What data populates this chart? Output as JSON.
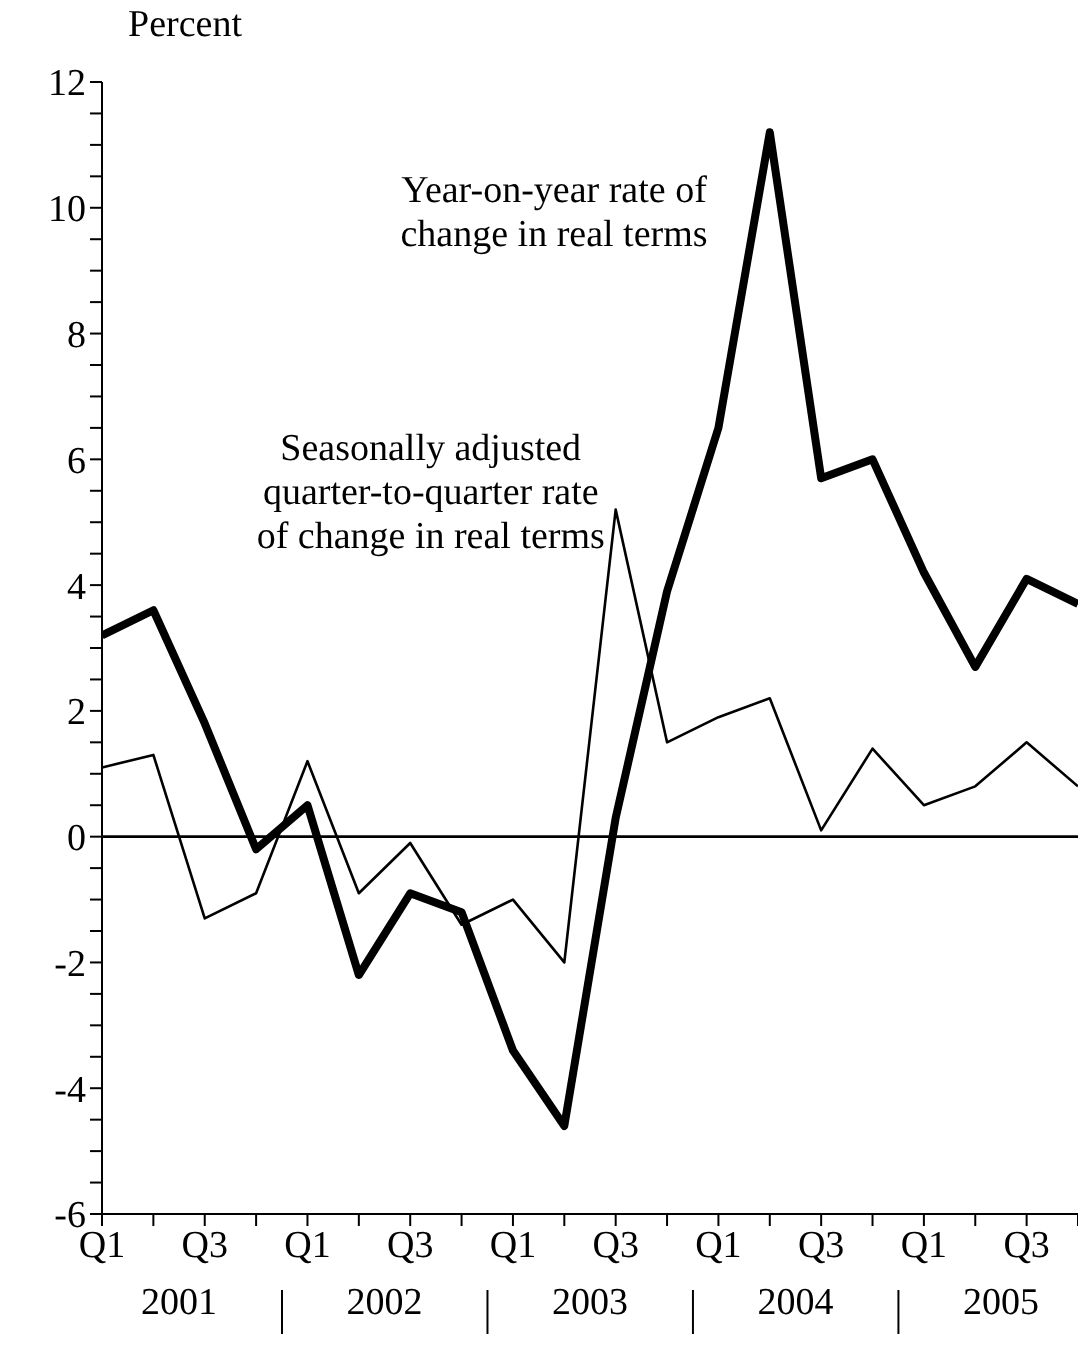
{
  "chart_data": {
    "type": "line",
    "ylabel": "Percent",
    "categories": [
      "Q1",
      null,
      "Q3",
      null,
      "Q1",
      null,
      "Q3",
      null,
      "Q1",
      null,
      "Q3",
      null,
      "Q1",
      null,
      "Q3",
      null,
      "Q1",
      null,
      "Q3",
      null
    ],
    "series": [
      {
        "name": "Year-on-year rate of change in real terms",
        "color": "#000000",
        "values": [
          3.2,
          3.6,
          1.8,
          -0.2,
          0.5,
          -2.2,
          -0.9,
          -1.2,
          -3.4,
          -4.6,
          0.3,
          3.9,
          6.5,
          11.2,
          5.7,
          6.0,
          4.2,
          2.7,
          4.1,
          3.7
        ]
      },
      {
        "name": "Seasonally adjusted quarter-to-quarter rate of change in real terms",
        "color": "#000000",
        "values": [
          1.1,
          1.3,
          -1.3,
          -0.9,
          1.2,
          -0.9,
          -0.1,
          -1.4,
          -1.0,
          -2.0,
          5.2,
          1.5,
          1.9,
          2.2,
          0.1,
          1.4,
          0.5,
          0.8,
          1.5,
          0.8
        ]
      }
    ],
    "ylim": [
      -6,
      12
    ],
    "yticks": [
      -6,
      {
        "value": -5.5,
        "label": null
      },
      {
        "value": -5,
        "label": null
      },
      {
        "value": -4.5,
        "label": null
      },
      -4,
      {
        "value": -3.5,
        "label": null
      },
      {
        "value": -3,
        "label": null
      },
      {
        "value": -2.5,
        "label": null
      },
      -2,
      {
        "value": -1.5,
        "label": null
      },
      {
        "value": -1,
        "label": null
      },
      {
        "value": -0.5,
        "label": null
      },
      0,
      {
        "value": 0.5,
        "label": null
      },
      {
        "value": 1,
        "label": null
      },
      {
        "value": 1.5,
        "label": null
      },
      2,
      {
        "value": 2.5,
        "label": null
      },
      {
        "value": 3,
        "label": null
      },
      {
        "value": 3.5,
        "label": null
      },
      4,
      {
        "value": 4.5,
        "label": null
      },
      {
        "value": 5,
        "label": null
      },
      {
        "value": 5.5,
        "label": null
      },
      6,
      {
        "value": 6.5,
        "label": null
      },
      {
        "value": 7,
        "label": null
      },
      {
        "value": 7.5,
        "label": null
      },
      8,
      {
        "value": 8.5,
        "label": null
      },
      {
        "value": 9,
        "label": null
      },
      {
        "value": 9.5,
        "label": null
      },
      10,
      {
        "value": 10.5,
        "label": null
      },
      {
        "value": 11,
        "label": null
      },
      {
        "value": 11.5,
        "label": null
      },
      12
    ],
    "ref_lines": [
      {
        "axis": "y",
        "value": 0,
        "color": "#000000"
      }
    ],
    "annotations": [
      "2001",
      "2002",
      "2003",
      "2004",
      "2005"
    ],
    "grid": false,
    "marker": "none",
    "line_style": "solid"
  }
}
